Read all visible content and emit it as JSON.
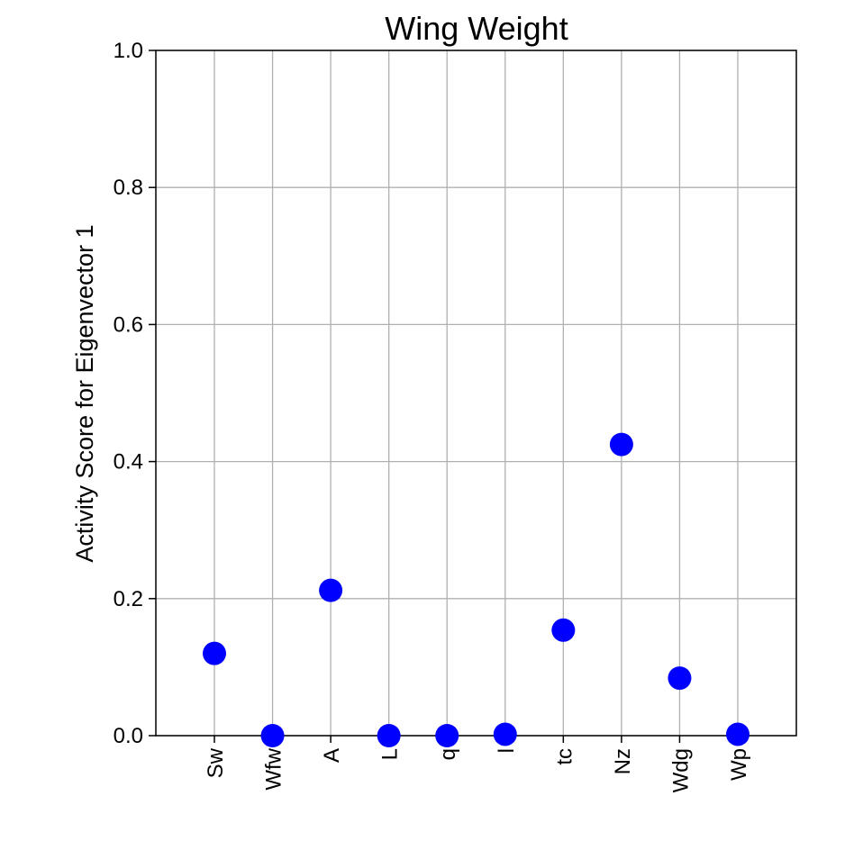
{
  "chart_data": {
    "type": "scatter",
    "title": "Wing Weight",
    "xlabel": "",
    "ylabel": "Activity Score for Eigenvector 1",
    "categories": [
      "Sw",
      "Wfw",
      "A",
      "L",
      "q",
      "l",
      "tc",
      "Nz",
      "Wdg",
      "Wp"
    ],
    "values": [
      0.12,
      0.0,
      0.212,
      0.0,
      0.0,
      0.002,
      0.154,
      0.425,
      0.084,
      0.002
    ],
    "ylim": [
      0,
      1.0
    ],
    "yticks": [
      "0.0",
      "0.2",
      "0.4",
      "0.6",
      "0.8",
      "1.0"
    ],
    "grid": true,
    "marker_color": "#0000ff"
  }
}
